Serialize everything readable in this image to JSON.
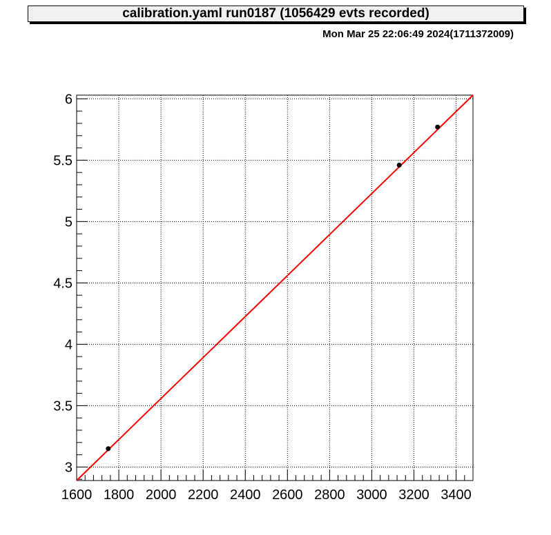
{
  "title": "calibration.yaml  run0187 (1056429 evts recorded)",
  "timestamp": "Mon Mar 25 22:06:49 2024(1711372009)",
  "colors": {
    "fit_line": "#ff0000",
    "points": "#000000",
    "grid": "#000000"
  },
  "chart_data": {
    "type": "scatter",
    "xlim": [
      1600,
      3480
    ],
    "ylim": [
      2.89,
      6.03
    ],
    "x_ticks": [
      1600,
      1800,
      2000,
      2200,
      2400,
      2600,
      2800,
      3000,
      3200,
      3400
    ],
    "y_ticks": [
      3,
      3.5,
      4,
      4.5,
      5,
      5.5,
      6
    ],
    "x_tick_labels": [
      "1600",
      "1800",
      "2000",
      "2200",
      "2400",
      "2600",
      "2800",
      "3000",
      "3200",
      "3400"
    ],
    "y_tick_labels": [
      "3",
      "3.5",
      "4",
      "4.5",
      "5",
      "5.5",
      "6"
    ],
    "grid": true,
    "series": [
      {
        "kind": "points",
        "x": [
          1750,
          3130,
          3312
        ],
        "y": [
          3.15,
          5.46,
          5.77
        ]
      },
      {
        "kind": "fit_line",
        "x": [
          1600,
          3480
        ],
        "y": [
          2.89,
          6.03
        ]
      }
    ]
  }
}
